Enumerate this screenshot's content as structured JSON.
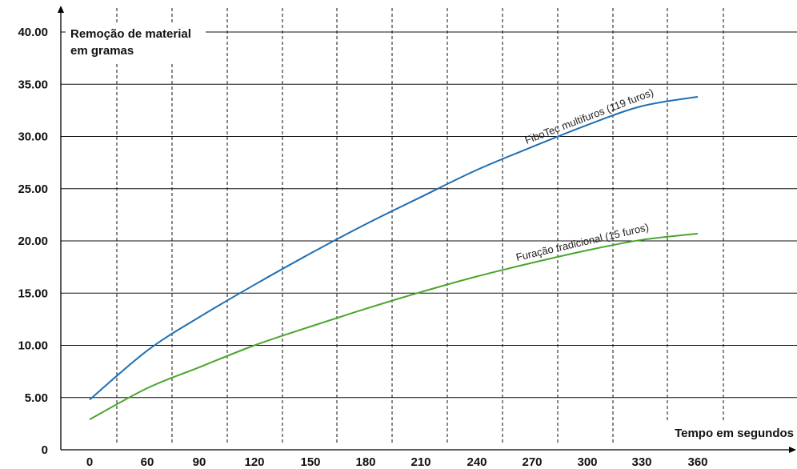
{
  "chart_data": {
    "type": "line",
    "title": "",
    "ylabel_lines": [
      "Remoção de material",
      "em gramas"
    ],
    "xlabel": "Tempo em segundos",
    "ylim": [
      0,
      40
    ],
    "y_ticks": [
      {
        "value": 0,
        "label": "0"
      },
      {
        "value": 5,
        "label": "5.00"
      },
      {
        "value": 10,
        "label": "10.00"
      },
      {
        "value": 15,
        "label": "15.00"
      },
      {
        "value": 20,
        "label": "20.00"
      },
      {
        "value": 25,
        "label": "25.00"
      },
      {
        "value": 30,
        "label": "30.00"
      },
      {
        "value": 35,
        "label": "35.00"
      },
      {
        "value": 40,
        "label": "40.00"
      }
    ],
    "x_tick_labels": [
      "0",
      "60",
      "90",
      "120",
      "150",
      "180",
      "210",
      "240",
      "270",
      "300",
      "330",
      "360"
    ],
    "grid": true,
    "series": [
      {
        "name": "FiboTec multifuros (119 furos)",
        "color": "#1f6fb4",
        "points": [
          {
            "x": "0",
            "y": 4.8
          },
          {
            "x": "60",
            "y": 9.5
          },
          {
            "x": "90",
            "y": 12.7
          },
          {
            "x": "120",
            "y": 15.8
          },
          {
            "x": "150",
            "y": 18.8
          },
          {
            "x": "180",
            "y": 21.6
          },
          {
            "x": "210",
            "y": 24.2
          },
          {
            "x": "240",
            "y": 26.8
          },
          {
            "x": "270",
            "y": 29.0
          },
          {
            "x": "300",
            "y": 31.1
          },
          {
            "x": "330",
            "y": 32.9
          },
          {
            "x": "360",
            "y": 33.8
          }
        ]
      },
      {
        "name": "Furação tradicional (15 furos)",
        "color": "#4aa52e",
        "points": [
          {
            "x": "0",
            "y": 2.9
          },
          {
            "x": "60",
            "y": 5.9
          },
          {
            "x": "90",
            "y": 7.9
          },
          {
            "x": "120",
            "y": 10.0
          },
          {
            "x": "150",
            "y": 11.8
          },
          {
            "x": "180",
            "y": 13.5
          },
          {
            "x": "210",
            "y": 15.1
          },
          {
            "x": "240",
            "y": 16.6
          },
          {
            "x": "270",
            "y": 17.9
          },
          {
            "x": "300",
            "y": 19.1
          },
          {
            "x": "330",
            "y": 20.1
          },
          {
            "x": "360",
            "y": 20.7
          }
        ]
      }
    ]
  }
}
